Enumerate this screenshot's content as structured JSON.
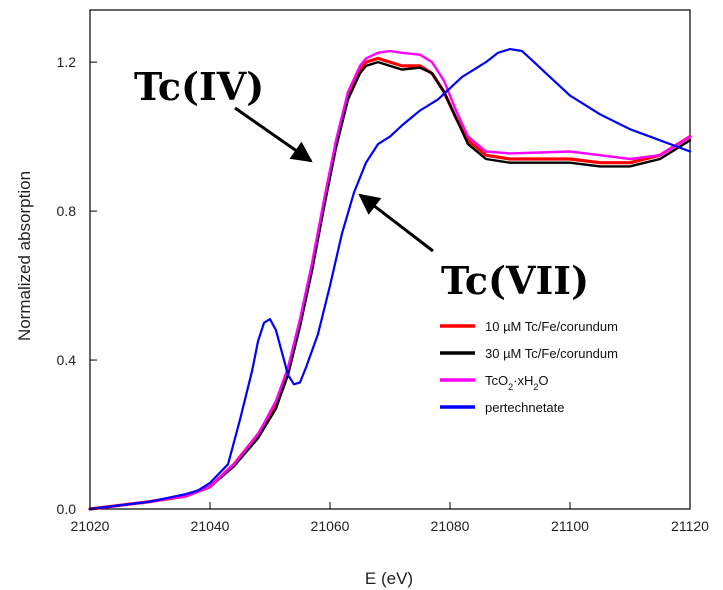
{
  "chart_data": {
    "type": "line",
    "xlabel": "E (eV)",
    "ylabel": "Normalized absorption",
    "xlim": [
      21020,
      21120
    ],
    "ylim": [
      0.0,
      1.34
    ],
    "xticks": [
      21020,
      21040,
      21060,
      21080,
      21100,
      21120
    ],
    "yticks": [
      0.0,
      0.4,
      0.8,
      1.2
    ],
    "xtick_labels": [
      "21020",
      "21040",
      "21060",
      "21080",
      "21100",
      "21120"
    ],
    "ytick_labels": [
      "0.0",
      "0.4",
      "0.8",
      "1.2"
    ],
    "grid": false,
    "legend_position": "lower-right",
    "series": [
      {
        "name": "10 µM Tc/Fe/corundum",
        "color": "#ff0000",
        "x": [
          21020,
          21030,
          21036,
          21040,
          21044,
          21048,
          21051,
          21053,
          21055,
          21057,
          21059,
          21061,
          21063,
          21065,
          21066,
          21068,
          21070,
          21072,
          21075,
          21077,
          21079,
          21081,
          21083,
          21086,
          21090,
          21100,
          21105,
          21110,
          21115,
          21120
        ],
        "y": [
          0.0,
          0.02,
          0.035,
          0.06,
          0.12,
          0.2,
          0.28,
          0.37,
          0.5,
          0.65,
          0.82,
          0.98,
          1.11,
          1.18,
          1.2,
          1.21,
          1.2,
          1.19,
          1.19,
          1.17,
          1.12,
          1.05,
          0.99,
          0.95,
          0.94,
          0.94,
          0.93,
          0.93,
          0.95,
          1.0
        ]
      },
      {
        "name": "30 µM Tc/Fe/corundum",
        "color": "#000000",
        "x": [
          21020,
          21030,
          21036,
          21040,
          21044,
          21048,
          21051,
          21053,
          21055,
          21057,
          21059,
          21061,
          21063,
          21065,
          21066,
          21068,
          21070,
          21072,
          21075,
          21077,
          21079,
          21081,
          21083,
          21086,
          21090,
          21100,
          21105,
          21110,
          21115,
          21120
        ],
        "y": [
          0.0,
          0.02,
          0.035,
          0.06,
          0.115,
          0.19,
          0.27,
          0.36,
          0.49,
          0.64,
          0.81,
          0.97,
          1.1,
          1.17,
          1.19,
          1.2,
          1.19,
          1.18,
          1.185,
          1.17,
          1.12,
          1.05,
          0.98,
          0.94,
          0.93,
          0.93,
          0.92,
          0.92,
          0.94,
          0.99
        ]
      },
      {
        "name": "TcO2·xH2O",
        "color": "#ff00ff",
        "x": [
          21020,
          21030,
          21036,
          21040,
          21044,
          21048,
          21051,
          21053,
          21055,
          21057,
          21059,
          21061,
          21063,
          21065,
          21066,
          21068,
          21070,
          21072,
          21075,
          21077,
          21079,
          21081,
          21083,
          21086,
          21090,
          21100,
          21105,
          21110,
          21115,
          21120
        ],
        "y": [
          0.0,
          0.02,
          0.035,
          0.06,
          0.12,
          0.2,
          0.29,
          0.38,
          0.51,
          0.66,
          0.83,
          0.99,
          1.12,
          1.19,
          1.21,
          1.225,
          1.23,
          1.225,
          1.22,
          1.2,
          1.15,
          1.07,
          1.0,
          0.96,
          0.955,
          0.96,
          0.95,
          0.94,
          0.95,
          1.0
        ]
      },
      {
        "name": "pertechnetate",
        "color": "#0000ff",
        "x": [
          21020,
          21030,
          21036,
          21038,
          21040,
          21043,
          21045,
          21047,
          21048,
          21049,
          21050,
          21051,
          21052,
          21053,
          21054,
          21055,
          21056,
          21058,
          21060,
          21062,
          21064,
          21066,
          21068,
          21070,
          21072,
          21075,
          21078,
          21080,
          21082,
          21084,
          21086,
          21088,
          21090,
          21092,
          21094,
          21096,
          21100,
          21105,
          21110,
          21115,
          21120
        ],
        "y": [
          0.0,
          0.02,
          0.04,
          0.05,
          0.07,
          0.12,
          0.24,
          0.37,
          0.45,
          0.5,
          0.51,
          0.48,
          0.42,
          0.36,
          0.335,
          0.34,
          0.38,
          0.47,
          0.6,
          0.74,
          0.85,
          0.93,
          0.98,
          1.0,
          1.03,
          1.07,
          1.1,
          1.13,
          1.16,
          1.18,
          1.2,
          1.225,
          1.235,
          1.23,
          1.2,
          1.17,
          1.11,
          1.06,
          1.02,
          0.99,
          0.96
        ]
      }
    ],
    "annotations": [
      {
        "text": "Tc(IV)",
        "target_x": 21057,
        "target_y": 0.97
      },
      {
        "text": "Tc(VII)",
        "target_x": 21065,
        "target_y": 0.88
      }
    ]
  }
}
